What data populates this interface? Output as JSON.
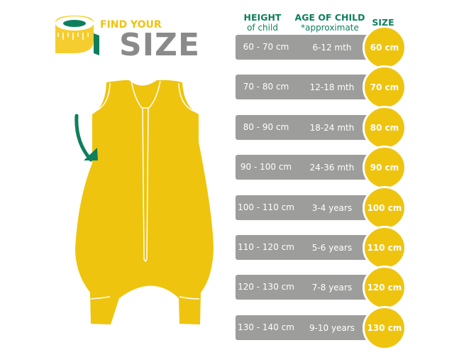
{
  "logo": {
    "find_your": "FIND YOUR",
    "size": "SIZE"
  },
  "headers": {
    "height_title": "HEIGHT",
    "height_sub": "of child",
    "age_title": "AGE OF CHILD",
    "age_sub": "*approximate",
    "size_title": "SIZE"
  },
  "rows": [
    {
      "height": "60 - 70  cm",
      "age": "6-12 mth",
      "size": "60 cm"
    },
    {
      "height": "70 - 80 cm",
      "age": "12-18 mth",
      "size": "70 cm"
    },
    {
      "height": "80 - 90 cm",
      "age": "18-24 mth",
      "size": "80 cm"
    },
    {
      "height": "90 - 100 cm",
      "age": "24-36 mth",
      "size": "90 cm"
    },
    {
      "height": "100 - 110 cm",
      "age": "3-4 years",
      "size": "100 cm"
    },
    {
      "height": "110 - 120 cm",
      "age": "5-6 years",
      "size": "110 cm"
    },
    {
      "height": "120 - 130 cm",
      "age": "7-8 years",
      "size": "120 cm"
    },
    {
      "height": "130 - 140 cm",
      "age": "9-10 years",
      "size": "130 cm"
    }
  ],
  "colors": {
    "yellow": "#eec40f",
    "green": "#0e7f5c",
    "gray": "#9d9d9c"
  }
}
